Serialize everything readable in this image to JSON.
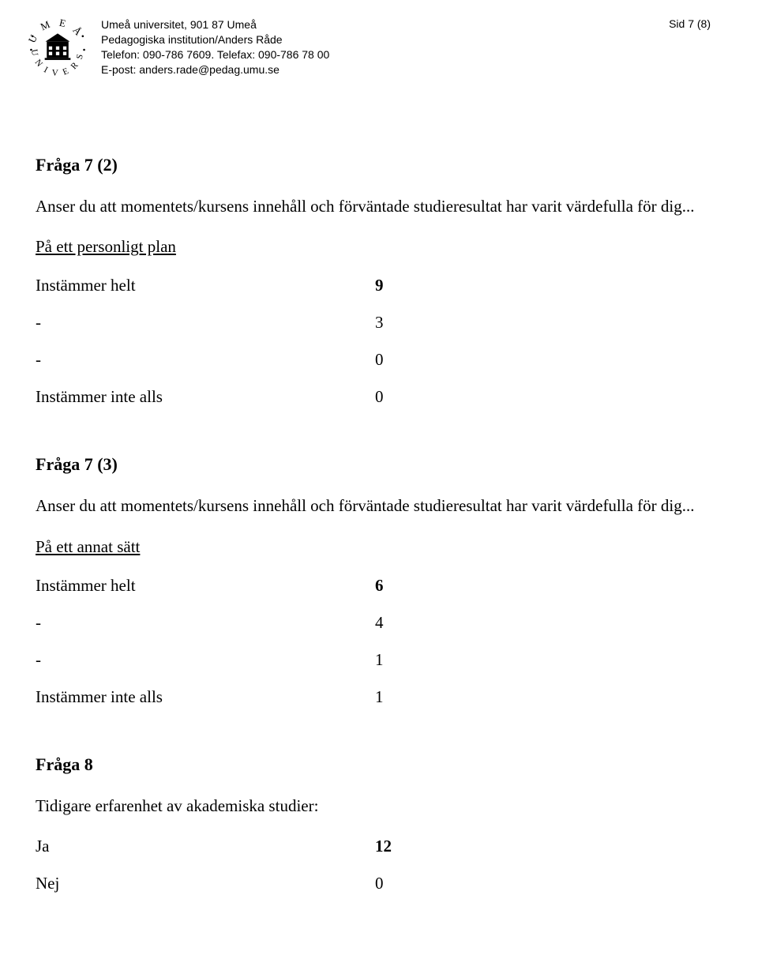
{
  "header": {
    "line1": "Umeå universitet, 901 87 Umeå",
    "line2": "Pedagogiska institution/Anders Råde",
    "line3": "Telefon: 090-786 7609. Telefax: 090-786 78 00",
    "line4": "E-post: anders.rade@pedag.umu.se",
    "page": "Sid 7 (8)"
  },
  "q7_2": {
    "title": "Fråga 7 (2)",
    "body": "Anser du att momentets/kursens innehåll och förväntade studieresultat har varit värdefulla för dig...",
    "sub": "På ett personligt plan",
    "rows": [
      {
        "label": "Instämmer helt",
        "value": "9",
        "bold": true
      },
      {
        "label": "-",
        "value": "3",
        "bold": false
      },
      {
        "label": "-",
        "value": "0",
        "bold": false
      },
      {
        "label": "Instämmer inte alls",
        "value": "0",
        "bold": false
      }
    ]
  },
  "q7_3": {
    "title": "Fråga 7 (3)",
    "body": "Anser du att momentets/kursens innehåll och förväntade studieresultat har varit värdefulla för dig...",
    "sub": "På ett annat sätt",
    "rows": [
      {
        "label": "Instämmer helt",
        "value": "6",
        "bold": true
      },
      {
        "label": "-",
        "value": "4",
        "bold": false
      },
      {
        "label": "-",
        "value": "1",
        "bold": false
      },
      {
        "label": "Instämmer inte alls",
        "value": "1",
        "bold": false
      }
    ]
  },
  "q8": {
    "title": "Fråga 8",
    "body": "Tidigare erfarenhet av akademiska studier:",
    "rows": [
      {
        "label": "Ja",
        "value": "12",
        "bold": true
      },
      {
        "label": "Nej",
        "value": "0",
        "bold": false
      }
    ]
  }
}
